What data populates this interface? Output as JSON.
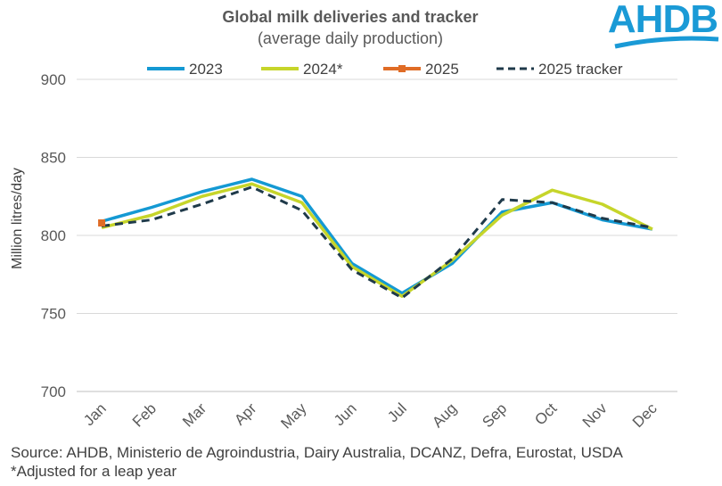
{
  "logo": "AHDB",
  "footer": {
    "source": "Source: AHDB, Ministerio de Agroindustria, Dairy Australia, DCANZ, Defra, Eurostat, USDA",
    "note": "*Adjusted for a leap year"
  },
  "colors": {
    "s2023": "#1499d3",
    "s2024": "#c6d52a",
    "s2025": "#e06c26",
    "tracker": "#1f3a4a",
    "grid": "#d9d9d9",
    "axis": "#bfbfbf",
    "logo": "#1a9ad6"
  },
  "chart_data": {
    "type": "line",
    "title": "Global milk deliveries and tracker",
    "subtitle": "(average daily production)",
    "ylabel": "Million litres/day",
    "xlabel": "",
    "ylim": [
      700,
      900
    ],
    "yticks": [
      700,
      750,
      800,
      850,
      900
    ],
    "grid": true,
    "legend_position": "top",
    "categories": [
      "Jan",
      "Feb",
      "Mar",
      "Apr",
      "May",
      "Jun",
      "Jul",
      "Aug",
      "Sep",
      "Oct",
      "Nov",
      "Dec"
    ],
    "series": [
      {
        "name": "2023",
        "style": "solid",
        "values": [
          809,
          818,
          828,
          836,
          825,
          782,
          763,
          782,
          815,
          821,
          810,
          804
        ]
      },
      {
        "name": "2024*",
        "style": "solid",
        "values": [
          805,
          813,
          825,
          833,
          821,
          780,
          761,
          784,
          813,
          829,
          820,
          804
        ]
      },
      {
        "name": "2025",
        "style": "solid-marker",
        "values": [
          808,
          null,
          null,
          null,
          null,
          null,
          null,
          null,
          null,
          null,
          null,
          null
        ]
      },
      {
        "name": "2025 tracker",
        "style": "dashed",
        "values": [
          806,
          810,
          820,
          831,
          816,
          778,
          760,
          785,
          823,
          821,
          811,
          805
        ]
      }
    ]
  }
}
